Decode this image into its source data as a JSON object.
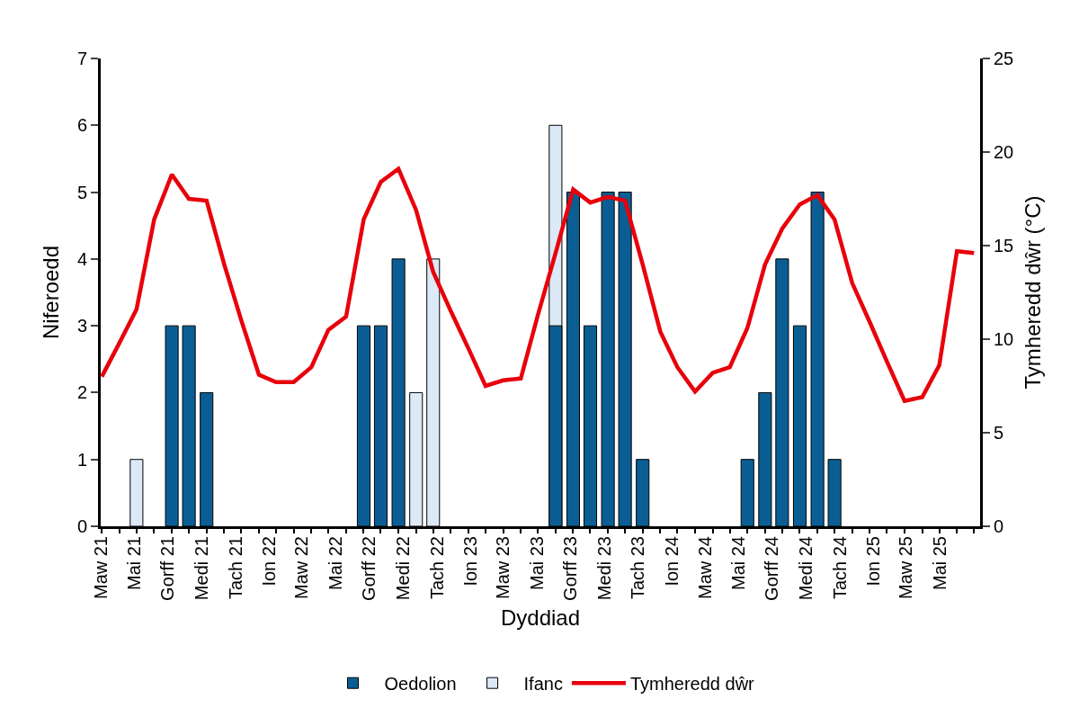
{
  "chart_data": {
    "type": "bar",
    "xlabel": "Dyddiad",
    "ylabel": "Niferoedd",
    "y2label": "Tymheredd dŵr (°C)",
    "x": [
      "2021-03-03",
      "2021-04-04",
      "2021-05-05",
      "2021-06-06",
      "2021-07-08",
      "2021-08-08",
      "2021-09-09",
      "2021-10-11",
      "2021-11-11",
      "2021-12-13",
      "2022-01-13",
      "2022-02-14",
      "2022-03-18",
      "2022-04-18",
      "2022-05-20",
      "2022-06-21",
      "2022-07-22",
      "2022-08-23",
      "2022-09-24",
      "2022-10-25",
      "2022-11-26",
      "2022-12-28",
      "2023-01-28",
      "2023-03-01",
      "2023-04-02",
      "2023-05-03",
      "2023-06-04",
      "2023-07-06",
      "2023-08-06",
      "2023-09-07",
      "2023-10-08",
      "2023-11-09",
      "2023-12-11",
      "2024-01-11",
      "2024-02-12",
      "2024-03-15",
      "2024-04-15",
      "2024-05-17",
      "2024-06-18",
      "2024-07-19",
      "2024-08-20",
      "2024-09-21",
      "2024-10-22",
      "2024-11-23",
      "2024-12-25",
      "2025-01-25",
      "2025-02-26",
      "2025-03-30",
      "2025-04-30",
      "2025-06-01",
      "2025-07-02"
    ],
    "series": [
      {
        "name": "Oedolion",
        "color": "#0b5e94",
        "values": [
          null,
          null,
          null,
          null,
          3,
          3,
          2,
          null,
          null,
          null,
          null,
          null,
          null,
          null,
          null,
          3,
          3,
          4,
          null,
          null,
          null,
          null,
          null,
          null,
          null,
          null,
          3,
          5,
          3,
          5,
          5,
          1,
          null,
          null,
          null,
          null,
          null,
          1,
          2,
          4,
          3,
          5,
          1,
          null,
          null,
          null,
          null,
          null,
          null,
          null,
          null
        ]
      },
      {
        "name": "Ifanc",
        "color": "#dce9f6",
        "values": [
          null,
          null,
          1,
          null,
          null,
          null,
          null,
          null,
          null,
          null,
          null,
          null,
          null,
          null,
          null,
          null,
          null,
          null,
          2,
          4,
          null,
          null,
          null,
          null,
          null,
          null,
          6,
          null,
          null,
          null,
          null,
          null,
          null,
          null,
          null,
          null,
          null,
          null,
          null,
          null,
          null,
          null,
          null,
          null,
          null,
          null,
          null,
          null,
          null,
          null,
          null
        ]
      },
      {
        "name": "Tymheredd dŵr",
        "type": "line",
        "axis": "y2",
        "color": "#e8000b",
        "values": [
          8.0,
          9.8,
          11.6,
          16.4,
          18.8,
          17.5,
          17.4,
          14.0,
          11.0,
          8.1,
          7.7,
          7.7,
          8.5,
          10.5,
          11.2,
          16.4,
          18.4,
          19.1,
          16.9,
          13.6,
          11.5,
          9.5,
          7.5,
          7.8,
          7.9,
          11.3,
          14.6,
          18.0,
          17.3,
          17.6,
          17.4,
          14.0,
          10.4,
          8.5,
          7.2,
          8.2,
          8.5,
          10.6,
          14.0,
          15.9,
          17.2,
          17.7,
          16.4,
          13.0,
          10.9,
          8.8,
          6.7,
          6.9,
          8.6,
          14.7,
          14.6
        ]
      }
    ],
    "xlim": [
      "2021-03-01",
      "2025-07-13"
    ],
    "xticks": [
      {
        "value": "2021-03-01",
        "label": "Maw 21"
      },
      {
        "value": "2021-05-01",
        "label": "Mai 21"
      },
      {
        "value": "2021-07-01",
        "label": "Gorff 21"
      },
      {
        "value": "2021-09-01",
        "label": "Medi 21"
      },
      {
        "value": "2021-11-01",
        "label": "Tach 21"
      },
      {
        "value": "2022-01-01",
        "label": "Ion 22"
      },
      {
        "value": "2022-03-01",
        "label": "Maw 22"
      },
      {
        "value": "2022-05-01",
        "label": "Mai 22"
      },
      {
        "value": "2022-07-01",
        "label": "Gorff 22"
      },
      {
        "value": "2022-09-01",
        "label": "Medi 22"
      },
      {
        "value": "2022-11-01",
        "label": "Tach 22"
      },
      {
        "value": "2023-01-01",
        "label": "Ion 23"
      },
      {
        "value": "2023-03-01",
        "label": "Maw 23"
      },
      {
        "value": "2023-05-01",
        "label": "Mai 23"
      },
      {
        "value": "2023-07-01",
        "label": "Gorff 23"
      },
      {
        "value": "2023-09-01",
        "label": "Medi 23"
      },
      {
        "value": "2023-11-01",
        "label": "Tach 23"
      },
      {
        "value": "2024-01-01",
        "label": "Ion 24"
      },
      {
        "value": "2024-03-01",
        "label": "Maw 24"
      },
      {
        "value": "2024-05-01",
        "label": "Mai 24"
      },
      {
        "value": "2024-07-01",
        "label": "Gorff 24"
      },
      {
        "value": "2024-09-01",
        "label": "Medi 24"
      },
      {
        "value": "2024-11-01",
        "label": "Tach 24"
      },
      {
        "value": "2025-01-01",
        "label": "Ion 25"
      },
      {
        "value": "2025-03-01",
        "label": "Maw 25"
      },
      {
        "value": "2025-05-01",
        "label": "Mai 25"
      }
    ],
    "ylim": [
      0,
      7
    ],
    "yticks": [
      0,
      1,
      2,
      3,
      4,
      5,
      6,
      7
    ],
    "y2lim": [
      0,
      25
    ],
    "y2ticks": [
      0,
      5,
      10,
      15,
      20,
      25
    ],
    "legend": "bottom",
    "marker": "none",
    "line_style": "solid"
  }
}
